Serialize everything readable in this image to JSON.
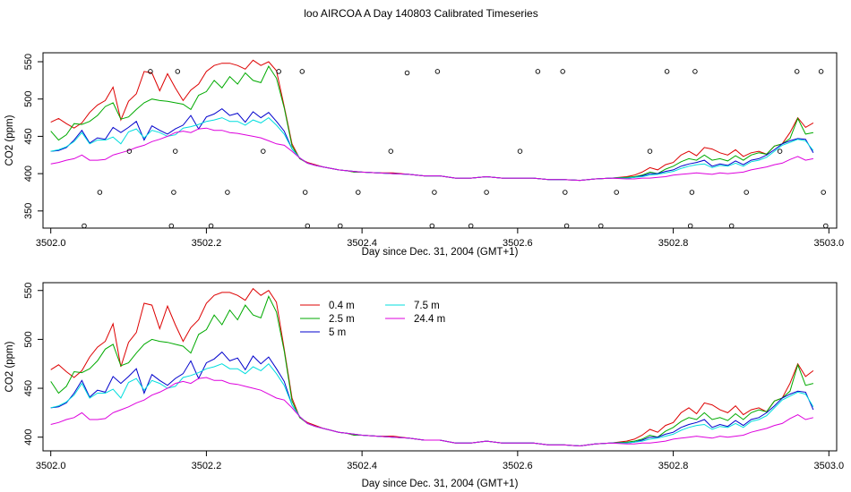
{
  "chart_data": [
    {
      "type": "line",
      "title": "loo AIRCOA A  Day 140803  Calibrated Timeseries",
      "xlabel": "Day since Dec. 31, 2004 (GMT+1)",
      "ylabel": "CO2 (ppm)",
      "xlim": [
        3501.99,
        3503.01
      ],
      "ylim": [
        327,
        562
      ],
      "x_ticks": [
        3502.0,
        3502.2,
        3502.4,
        3502.6,
        3502.8,
        3503.0
      ],
      "x_tick_labels": [
        "3502.0",
        "3502.2",
        "3502.4",
        "3502.6",
        "3502.8",
        "3503.0"
      ],
      "y_ticks": [
        350,
        400,
        450,
        500,
        550
      ],
      "y_tick_labels": [
        "350",
        "400",
        "450",
        "500",
        "550"
      ],
      "grid": false,
      "legend": null,
      "series_ref": "profiles",
      "calibration_points": {
        "x": [
          3502.043,
          3502.063,
          3502.101,
          3502.128,
          3502.155,
          3502.158,
          3502.16,
          3502.163,
          3502.206,
          3502.227,
          3502.273,
          3502.293,
          3502.323,
          3502.327,
          3502.33,
          3502.372,
          3502.395,
          3502.437,
          3502.458,
          3502.49,
          3502.493,
          3502.497,
          3502.54,
          3502.56,
          3502.603,
          3502.626,
          3502.658,
          3502.661,
          3502.663,
          3502.707,
          3502.727,
          3502.77,
          3502.792,
          3502.822,
          3502.824,
          3502.828,
          3502.875,
          3502.894,
          3502.937,
          3502.959,
          3502.99,
          3502.993,
          3502.996
        ],
        "y": [
          330,
          375,
          430,
          537,
          330,
          375,
          430,
          537,
          330,
          375,
          430,
          537,
          537,
          375,
          330,
          330,
          375,
          430,
          535,
          330,
          375,
          537,
          330,
          375,
          430,
          537,
          537,
          375,
          330,
          330,
          375,
          430,
          537,
          330,
          375,
          537,
          330,
          375,
          430,
          537,
          537,
          375,
          330
        ]
      }
    },
    {
      "type": "line",
      "title": "",
      "xlabel": "Day since Dec. 31, 2004 (GMT+1)",
      "ylabel": "CO2 (ppm)",
      "xlim": [
        3501.99,
        3503.01
      ],
      "ylim": [
        386,
        558
      ],
      "x_ticks": [
        3502.0,
        3502.2,
        3502.4,
        3502.6,
        3502.8,
        3503.0
      ],
      "x_tick_labels": [
        "3502.0",
        "3502.2",
        "3502.4",
        "3502.6",
        "3502.8",
        "3503.0"
      ],
      "y_ticks": [
        400,
        450,
        500,
        550
      ],
      "y_tick_labels": [
        "400",
        "450",
        "500",
        "550"
      ],
      "grid": false,
      "legend": "top-left",
      "series_ref": "profiles"
    }
  ],
  "profiles": {
    "x": [
      3502.0,
      3502.01,
      3502.02,
      3502.03,
      3502.04,
      3502.05,
      3502.06,
      3502.07,
      3502.08,
      3502.09,
      3502.1,
      3502.11,
      3502.12,
      3502.13,
      3502.14,
      3502.15,
      3502.16,
      3502.17,
      3502.18,
      3502.19,
      3502.2,
      3502.21,
      3502.22,
      3502.23,
      3502.24,
      3502.25,
      3502.26,
      3502.27,
      3502.28,
      3502.29,
      3502.3,
      3502.31,
      3502.32,
      3502.33,
      3502.34,
      3502.35,
      3502.36,
      3502.37,
      3502.38,
      3502.39,
      3502.4,
      3502.42,
      3502.44,
      3502.46,
      3502.48,
      3502.5,
      3502.52,
      3502.54,
      3502.56,
      3502.58,
      3502.6,
      3502.62,
      3502.64,
      3502.66,
      3502.68,
      3502.7,
      3502.72,
      3502.74,
      3502.75,
      3502.76,
      3502.77,
      3502.78,
      3502.79,
      3502.8,
      3502.81,
      3502.82,
      3502.83,
      3502.84,
      3502.85,
      3502.86,
      3502.87,
      3502.88,
      3502.89,
      3502.9,
      3502.91,
      3502.92,
      3502.93,
      3502.94,
      3502.95,
      3502.96,
      3502.97,
      3502.98
    ],
    "series": [
      {
        "name": "0.4 m",
        "color": "#dd0000",
        "values": [
          469,
          474,
          467,
          461,
          468,
          482,
          492,
          498,
          516,
          472,
          497,
          507,
          537,
          535,
          511,
          534,
          515,
          498,
          512,
          520,
          537,
          545,
          548,
          548,
          545,
          540,
          552,
          545,
          550,
          538,
          490,
          440,
          420,
          415,
          412,
          409,
          407,
          405,
          404,
          402,
          402,
          401,
          401,
          399,
          397,
          397,
          394,
          394,
          396,
          394,
          394,
          394,
          392,
          392,
          391,
          393,
          394,
          396,
          398,
          402,
          408,
          405,
          412,
          415,
          425,
          430,
          424,
          435,
          433,
          428,
          425,
          432,
          423,
          428,
          430,
          426,
          437,
          440,
          455,
          475,
          462,
          468
        ]
      },
      {
        "name": "2.5 m",
        "color": "#00aa00",
        "values": [
          457,
          445,
          452,
          467,
          466,
          470,
          478,
          490,
          495,
          473,
          476,
          486,
          495,
          500,
          498,
          497,
          495,
          493,
          486,
          505,
          510,
          525,
          515,
          530,
          520,
          535,
          525,
          522,
          544,
          528,
          488,
          437,
          420,
          414,
          411,
          409,
          407,
          405,
          404,
          402,
          402,
          401,
          400,
          399,
          397,
          397,
          394,
          394,
          396,
          394,
          394,
          394,
          392,
          392,
          391,
          393,
          394,
          395,
          396,
          398,
          402,
          400,
          406,
          410,
          416,
          420,
          418,
          425,
          418,
          420,
          417,
          424,
          418,
          425,
          428,
          426,
          437,
          440,
          447,
          474,
          453,
          455
        ]
      },
      {
        "name": "5 m",
        "color": "#0000cc",
        "values": [
          430,
          431,
          435,
          445,
          458,
          441,
          448,
          446,
          462,
          455,
          462,
          470,
          445,
          464,
          458,
          453,
          460,
          465,
          478,
          460,
          476,
          480,
          487,
          478,
          481,
          469,
          483,
          475,
          482,
          470,
          457,
          433,
          421,
          414,
          411,
          409,
          407,
          405,
          404,
          403,
          402,
          401,
          400,
          399,
          397,
          397,
          394,
          394,
          396,
          394,
          394,
          394,
          392,
          392,
          391,
          393,
          394,
          394,
          395,
          397,
          400,
          400,
          403,
          405,
          410,
          413,
          415,
          418,
          410,
          413,
          411,
          417,
          412,
          418,
          420,
          425,
          432,
          440,
          444,
          447,
          446,
          428
        ]
      },
      {
        "name": "7.5 m",
        "color": "#00dddd",
        "values": [
          430,
          432,
          436,
          443,
          455,
          440,
          445,
          445,
          449,
          440,
          456,
          460,
          448,
          458,
          455,
          450,
          452,
          461,
          463,
          466,
          470,
          472,
          475,
          470,
          470,
          465,
          472,
          468,
          475,
          465,
          453,
          433,
          421,
          414,
          411,
          409,
          407,
          405,
          404,
          403,
          402,
          401,
          400,
          399,
          397,
          397,
          394,
          394,
          396,
          394,
          394,
          394,
          392,
          392,
          391,
          393,
          394,
          394,
          395,
          396,
          398,
          399,
          401,
          403,
          407,
          410,
          412,
          413,
          408,
          411,
          410,
          414,
          410,
          416,
          418,
          422,
          430,
          438,
          442,
          446,
          444,
          431
        ]
      },
      {
        "name": "24.4 m",
        "color": "#dd00dd",
        "values": [
          413,
          415,
          418,
          420,
          425,
          418,
          418,
          419,
          425,
          428,
          431,
          435,
          438,
          443,
          446,
          450,
          455,
          457,
          455,
          460,
          461,
          458,
          458,
          455,
          454,
          452,
          450,
          448,
          444,
          440,
          438,
          430,
          421,
          414,
          411,
          409,
          407,
          405,
          404,
          403,
          402,
          401,
          400,
          399,
          397,
          397,
          394,
          394,
          396,
          394,
          394,
          394,
          392,
          392,
          391,
          393,
          394,
          393,
          393,
          394,
          394,
          395,
          396,
          398,
          399,
          400,
          401,
          400,
          399,
          401,
          400,
          401,
          402,
          405,
          407,
          409,
          412,
          414,
          419,
          423,
          418,
          420
        ]
      }
    ]
  }
}
